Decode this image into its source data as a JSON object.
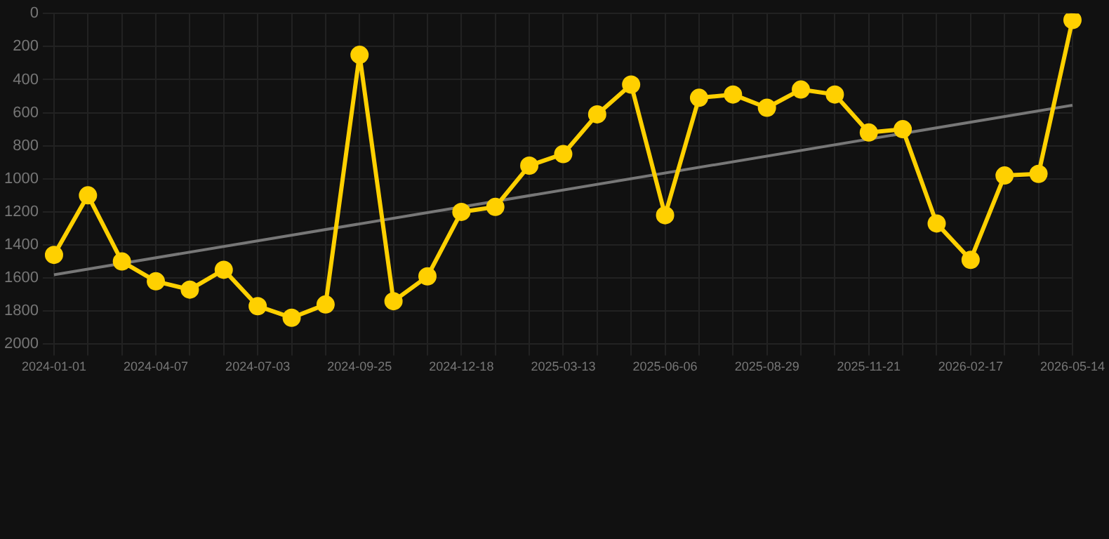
{
  "chart_data": {
    "type": "line",
    "categories": [
      "2024-01-01",
      null,
      null,
      "2024-04-07",
      null,
      null,
      "2024-07-03",
      null,
      null,
      "2024-09-25",
      null,
      null,
      "2024-12-18",
      null,
      null,
      "2025-03-13",
      null,
      null,
      "2025-06-06",
      null,
      null,
      "2025-08-29",
      null,
      null,
      "2025-11-21",
      null,
      null,
      "2026-02-17",
      null,
      null,
      "2026-05-14"
    ],
    "series": [
      {
        "color": "#ffd000",
        "values": [
          1460,
          1100,
          1500,
          1620,
          1670,
          1550,
          1770,
          1840,
          1760,
          250,
          1740,
          1590,
          1200,
          1170,
          920,
          850,
          610,
          430,
          1220,
          510,
          490,
          570,
          460,
          490,
          720,
          700,
          1270,
          1490,
          980,
          970,
          40
        ]
      },
      {
        "type": "line",
        "color": "#777777",
        "marker": "none",
        "values": [
          1580,
          null,
          null,
          null,
          null,
          null,
          null,
          null,
          null,
          null,
          null,
          null,
          null,
          null,
          null,
          null,
          null,
          null,
          null,
          null,
          null,
          null,
          null,
          null,
          null,
          null,
          null,
          null,
          null,
          null,
          555
        ]
      }
    ],
    "ylim": [
      2000,
      0
    ],
    "yticks": [
      0,
      200,
      400,
      600,
      800,
      1000,
      1200,
      1400,
      1600,
      1800,
      2000
    ],
    "grid": true,
    "marker": "circle"
  }
}
